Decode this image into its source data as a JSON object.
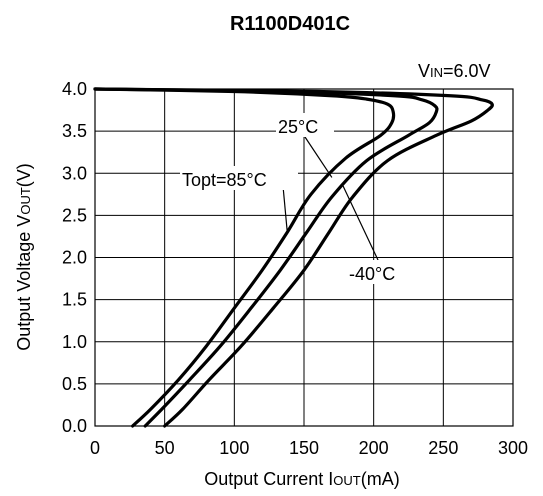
{
  "chart_data": {
    "type": "line",
    "title": "R1100D401C",
    "condition": {
      "prefix": "V",
      "sub": "IN",
      "suffix": "=6.0V"
    },
    "xlabel": {
      "prefix": "Output Current I",
      "sub": "OUT",
      "suffix": "(mA)"
    },
    "ylabel": {
      "prefix": "Output Voltage V",
      "sub": "OUT",
      "suffix": "(V)"
    },
    "xlim": [
      0,
      300
    ],
    "ylim": [
      0,
      4.0
    ],
    "xticks": [
      "0",
      "50",
      "100",
      "150",
      "200",
      "250",
      "300"
    ],
    "yticks": [
      "0.0",
      "0.5",
      "1.0",
      "1.5",
      "2.0",
      "2.5",
      "3.0",
      "3.5",
      "4.0"
    ],
    "grid": true,
    "series": [
      {
        "name": "Topt=85°C",
        "x": [
          0,
          100,
          170,
          195,
          210,
          214,
          213,
          205,
          180,
          155,
          138,
          120,
          100,
          80,
          60,
          40,
          27
        ],
        "y": [
          4.0,
          3.97,
          3.92,
          3.88,
          3.82,
          3.73,
          3.6,
          3.45,
          3.18,
          2.75,
          2.3,
          1.85,
          1.4,
          0.95,
          0.55,
          0.2,
          0.0
        ]
      },
      {
        "name": "25°C",
        "x": [
          0,
          130,
          215,
          235,
          244,
          245,
          240,
          225,
          195,
          170,
          152,
          133,
          112,
          90,
          68,
          48,
          36
        ],
        "y": [
          4.0,
          3.97,
          3.92,
          3.87,
          3.8,
          3.73,
          3.6,
          3.45,
          3.15,
          2.72,
          2.3,
          1.85,
          1.4,
          0.95,
          0.55,
          0.2,
          0.0
        ]
      },
      {
        "name": "-40°C",
        "x": [
          0,
          160,
          255,
          278,
          285,
          282,
          270,
          245,
          210,
          185,
          168,
          150,
          128,
          105,
          82,
          63,
          50
        ],
        "y": [
          4.0,
          3.97,
          3.92,
          3.87,
          3.82,
          3.75,
          3.62,
          3.45,
          3.15,
          2.72,
          2.3,
          1.85,
          1.4,
          0.95,
          0.55,
          0.2,
          0.0
        ]
      }
    ],
    "annotations": [
      {
        "text": "Topt=85°C",
        "series": 0
      },
      {
        "text": "25°C",
        "series": 1
      },
      {
        "text": "-40°C",
        "series": 2
      }
    ]
  }
}
